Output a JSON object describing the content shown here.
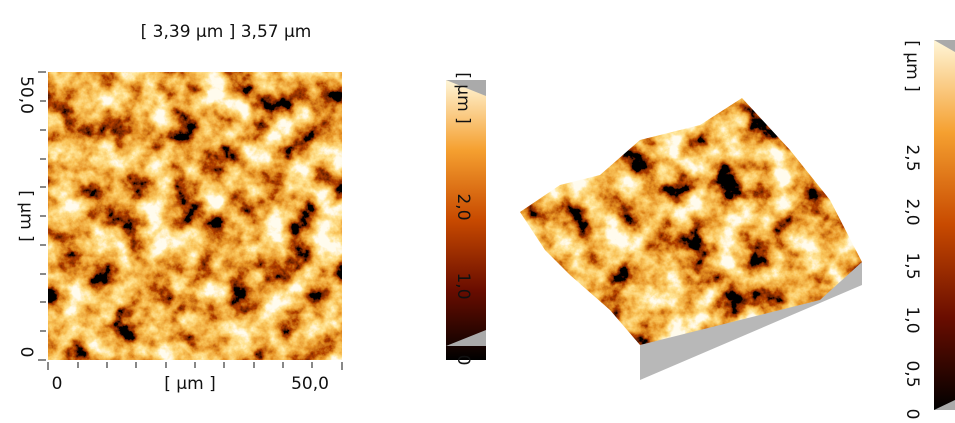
{
  "header": {
    "title": "[ 3,39 µm ] 3,57 µm"
  },
  "image_2d": {
    "y_axis": {
      "top": "50,0",
      "unit": "[ µm ]",
      "bottom": "0"
    },
    "x_axis": {
      "left": "0",
      "unit": "[ µm ]",
      "right": "50,0"
    }
  },
  "colorbar_1": {
    "unit": "[ µm ]",
    "labels": [
      "2,0",
      "1,0",
      "0"
    ]
  },
  "colorbar_2": {
    "unit": "[ µm ]",
    "labels": [
      "2,5",
      "2,0",
      "1,5",
      "1,0",
      "0,5",
      "0"
    ]
  }
}
